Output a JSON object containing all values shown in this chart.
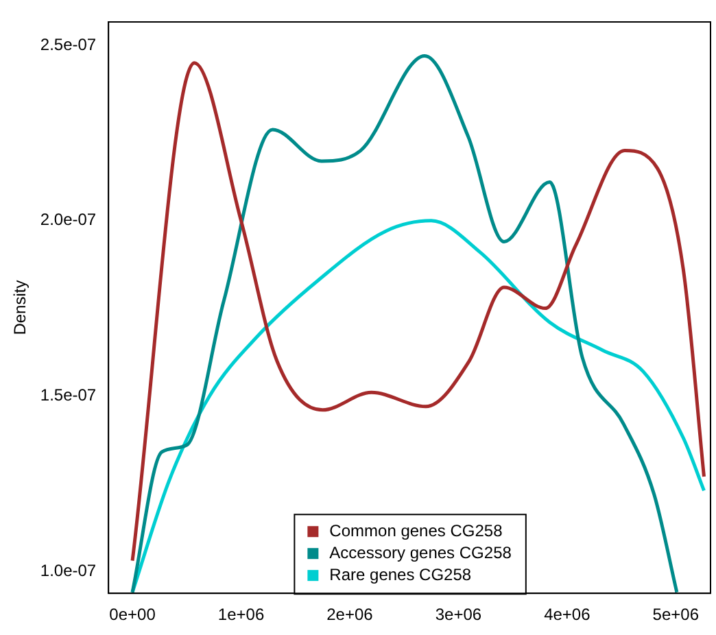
{
  "chart_data": {
    "type": "line",
    "ylabel": "Density",
    "xlim": [
      -220000,
      5320000
    ],
    "ylim": [
      9.37e-08,
      2.567e-07
    ],
    "xticks": [
      {
        "value": 0,
        "label": "0e+00"
      },
      {
        "value": 1000000,
        "label": "1e+06"
      },
      {
        "value": 2000000,
        "label": "2e+06"
      },
      {
        "value": 3000000,
        "label": "3e+06"
      },
      {
        "value": 4000000,
        "label": "4e+06"
      },
      {
        "value": 5000000,
        "label": "5e+06"
      }
    ],
    "yticks": [
      {
        "value": 1e-07,
        "label": "1.0e-07"
      },
      {
        "value": 1.5e-07,
        "label": "1.5e-07"
      },
      {
        "value": 2e-07,
        "label": "2.0e-07"
      },
      {
        "value": 2.5e-07,
        "label": "2.5e-07"
      }
    ],
    "grid": false,
    "legend": "bottom",
    "marker": "none",
    "line_style": "solid",
    "series": [
      {
        "name": "Common genes CG258",
        "color": "#a52a2a",
        "x": [
          0,
          570000,
          1000000,
          1330000,
          1750000,
          2200000,
          2700000,
          3100000,
          3420000,
          3800000,
          4080000,
          4530000,
          4830000,
          5070000,
          5260000
        ],
        "values": [
          1.03e-07,
          2.45e-07,
          2e-07,
          1.6e-07,
          1.46e-07,
          1.51e-07,
          1.47e-07,
          1.6e-07,
          1.81e-07,
          1.75e-07,
          1.93e-07,
          2.2e-07,
          2.15e-07,
          1.86e-07,
          1.27e-07
        ]
      },
      {
        "name": "Accessory genes CG258",
        "color": "#008b8b",
        "x": [
          0,
          270000,
          500000,
          840000,
          1290000,
          1740000,
          2100000,
          2690000,
          3090000,
          3420000,
          3840000,
          4140000,
          4520000,
          4800000,
          5010000
        ],
        "values": [
          9.4e-08,
          1.34e-07,
          1.36e-07,
          1.77e-07,
          2.26e-07,
          2.17e-07,
          2.2e-07,
          2.47e-07,
          2.24e-07,
          1.94e-07,
          2.11e-07,
          1.61e-07,
          1.42e-07,
          1.22e-07,
          9.4e-08
        ]
      },
      {
        "name": "Rare genes CG258",
        "color": "#00ced1",
        "x": [
          0,
          340000,
          710000,
          1150000,
          1710000,
          2330000,
          2750000,
          3200000,
          3840000,
          4330000,
          4700000,
          5070000,
          5260000
        ],
        "values": [
          9.4e-08,
          1.26e-07,
          1.5e-07,
          1.67e-07,
          1.83e-07,
          1.97e-07,
          2e-07,
          1.91e-07,
          1.71e-07,
          1.63e-07,
          1.57e-07,
          1.38e-07,
          1.23e-07
        ]
      }
    ]
  }
}
